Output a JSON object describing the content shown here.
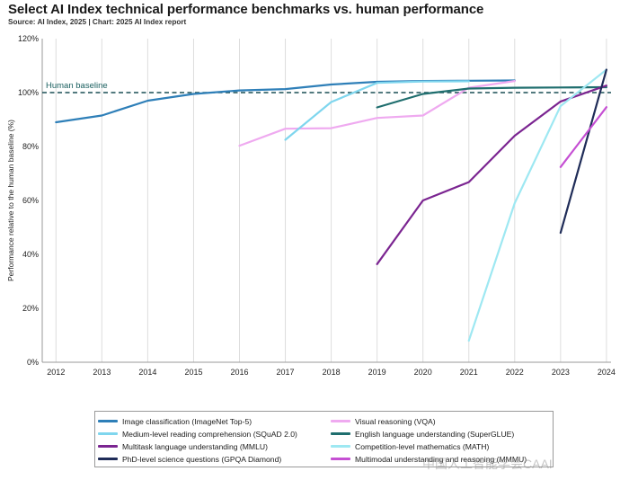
{
  "title": "Select AI Index technical performance benchmarks vs. human performance",
  "subtitle": "Source: AI Index, 2025 | Chart: 2025 AI Index report",
  "watermark": "中国人工智能学会CAAI",
  "chart_data": {
    "type": "line",
    "title": "Select AI Index technical performance benchmarks vs. human performance",
    "xlabel": "",
    "ylabel": "Performance relative to the human baseline (%)",
    "xlim": [
      2011.7,
      2024.1
    ],
    "ylim": [
      0,
      120
    ],
    "x_ticks": [
      2012,
      2013,
      2014,
      2015,
      2016,
      2017,
      2018,
      2019,
      2020,
      2021,
      2022,
      2023,
      2024
    ],
    "y_ticks": [
      0,
      20,
      40,
      60,
      80,
      100,
      120
    ],
    "y_tick_labels": [
      "0%",
      "20%",
      "40%",
      "60%",
      "80%",
      "100%",
      "120%"
    ],
    "grid": "vertical",
    "baseline": {
      "value": 100,
      "label": "Human baseline",
      "color": "#1a4f55"
    },
    "legend_position": "bottom",
    "series": [
      {
        "name": "Image classification (ImageNet Top-5)",
        "color": "#2e7fb8",
        "x": [
          2012,
          2013,
          2014,
          2015,
          2016,
          2017,
          2018,
          2019,
          2020,
          2021,
          2022
        ],
        "y": [
          89,
          91.5,
          97,
          99.5,
          100.8,
          101.3,
          103,
          104,
          104.3,
          104.4,
          104.5
        ]
      },
      {
        "name": "Visual reasoning (VQA)",
        "color": "#efaaf0",
        "x": [
          2016,
          2017,
          2018,
          2019,
          2020,
          2021,
          2022
        ],
        "y": [
          80.3,
          86.6,
          86.8,
          90.6,
          91.5,
          101.8,
          104.3
        ]
      },
      {
        "name": "Medium-level reading comprehension (SQuAD 2.0)",
        "color": "#7fd6ee",
        "x": [
          2017,
          2018,
          2019,
          2020,
          2021
        ],
        "y": [
          82.5,
          96.5,
          103.6,
          104.1,
          104.2
        ]
      },
      {
        "name": "English language understanding (SuperGLUE)",
        "color": "#1f6e6e",
        "x": [
          2019,
          2020,
          2021,
          2022,
          2023,
          2024
        ],
        "y": [
          94.5,
          99.5,
          101.5,
          101.8,
          101.9,
          102
        ]
      },
      {
        "name": "Multitask language understanding (MMLU)",
        "color": "#7b2591",
        "x": [
          2019,
          2020,
          2021,
          2022,
          2023,
          2024
        ],
        "y": [
          36.4,
          60,
          66.8,
          84,
          96.7,
          102.6
        ]
      },
      {
        "name": "Competition-level mathematics (MATH)",
        "color": "#9ee8f2",
        "x": [
          2021,
          2022,
          2023,
          2024
        ],
        "y": [
          8,
          59,
          95,
          108.5
        ]
      },
      {
        "name": "PhD-level science questions (GPQA Diamond)",
        "color": "#1f2c58",
        "x": [
          2023,
          2024
        ],
        "y": [
          48,
          108.5
        ]
      },
      {
        "name": "Multimodal understanding and reasoning (MMMU)",
        "color": "#c54fd3",
        "x": [
          2023,
          2024
        ],
        "y": [
          72.4,
          94.6
        ]
      }
    ],
    "legend_order": [
      0,
      1,
      2,
      3,
      4,
      5,
      6,
      7
    ]
  }
}
